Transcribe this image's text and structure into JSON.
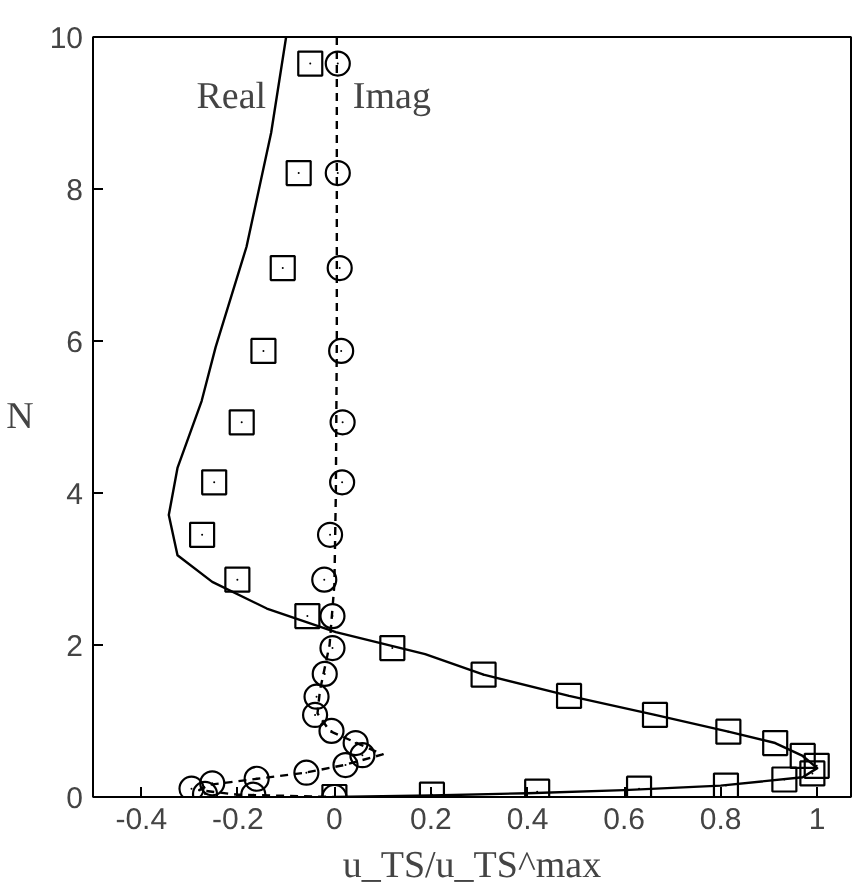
{
  "chart_data": {
    "type": "line",
    "xlabel": "u_TS/u_TS^max",
    "ylabel": "N",
    "xlim": [
      -0.5,
      1.07
    ],
    "ylim": [
      0,
      10
    ],
    "xticks": [
      -0.4,
      -0.2,
      0,
      0.2,
      0.4,
      0.6,
      0.8,
      1
    ],
    "yticks": [
      0,
      2,
      4,
      6,
      8,
      10
    ],
    "grid": false,
    "series": [
      {
        "name": "Real",
        "line_style": "solid",
        "marker": "none",
        "color": "#000000",
        "x": [
          -0.1,
          -0.131,
          -0.182,
          -0.246,
          -0.275,
          -0.325,
          -0.343,
          -0.325,
          -0.253,
          -0.14,
          0.003,
          0.188,
          0.309,
          0.486,
          0.664,
          0.816,
          0.913,
          0.97,
          1.0,
          0.97,
          0.8,
          0.6,
          0.4,
          0.2,
          0
        ],
        "values": [
          10,
          8.74,
          7.24,
          5.92,
          5.21,
          4.33,
          3.71,
          3.18,
          2.83,
          2.48,
          2.17,
          1.88,
          1.61,
          1.33,
          1.08,
          0.86,
          0.71,
          0.54,
          0.38,
          0.26,
          0.15,
          0.09,
          0.05,
          0.02,
          0
        ]
      },
      {
        "name": "Imag",
        "line_style": "dashed",
        "marker": "none",
        "color": "#000000",
        "x": [
          0.005,
          0.005,
          0.003,
          0.0,
          -0.01,
          -0.03,
          -0.035,
          -0.01,
          0.05,
          0.1,
          0.02,
          -0.06,
          -0.16,
          -0.26,
          -0.28,
          -0.2,
          0
        ],
        "values": [
          10,
          6,
          4,
          2.8,
          2.0,
          1.4,
          1.1,
          0.87,
          0.7,
          0.56,
          0.42,
          0.32,
          0.24,
          0.16,
          0.09,
          0.03,
          0
        ]
      },
      {
        "type": "scatter",
        "marker": "square",
        "color": "#000000",
        "x": [
          -0.05,
          -0.074,
          -0.107,
          -0.147,
          -0.192,
          -0.249,
          -0.274,
          -0.201,
          -0.056,
          0.12,
          0.309,
          0.486,
          0.664,
          0.816,
          0.913,
          0.97,
          0.999,
          0.99,
          0.932,
          0.811,
          0.631,
          0.42,
          0.202,
          0
        ],
        "values": [
          9.65,
          8.21,
          6.96,
          5.87,
          4.93,
          4.14,
          3.45,
          2.86,
          2.38,
          1.96,
          1.61,
          1.33,
          1.08,
          0.86,
          0.71,
          0.54,
          0.41,
          0.31,
          0.23,
          0.15,
          0.11,
          0.07,
          0.03,
          0
        ]
      },
      {
        "type": "scatter",
        "marker": "circle",
        "color": "#000000",
        "x": [
          0.007,
          0.007,
          0.011,
          0.014,
          0.017,
          0.016,
          -0.009,
          -0.021,
          -0.004,
          -0.004,
          -0.02,
          -0.037,
          -0.04,
          -0.006,
          0.044,
          0.058,
          0.023,
          -0.058,
          -0.161,
          -0.253,
          -0.296,
          -0.268,
          -0.168,
          0
        ],
        "values": [
          9.65,
          8.21,
          6.96,
          5.87,
          4.93,
          4.14,
          3.45,
          2.86,
          2.38,
          1.96,
          1.62,
          1.32,
          1.08,
          0.87,
          0.71,
          0.55,
          0.42,
          0.32,
          0.24,
          0.18,
          0.11,
          0.04,
          0.03,
          0
        ]
      }
    ]
  }
}
